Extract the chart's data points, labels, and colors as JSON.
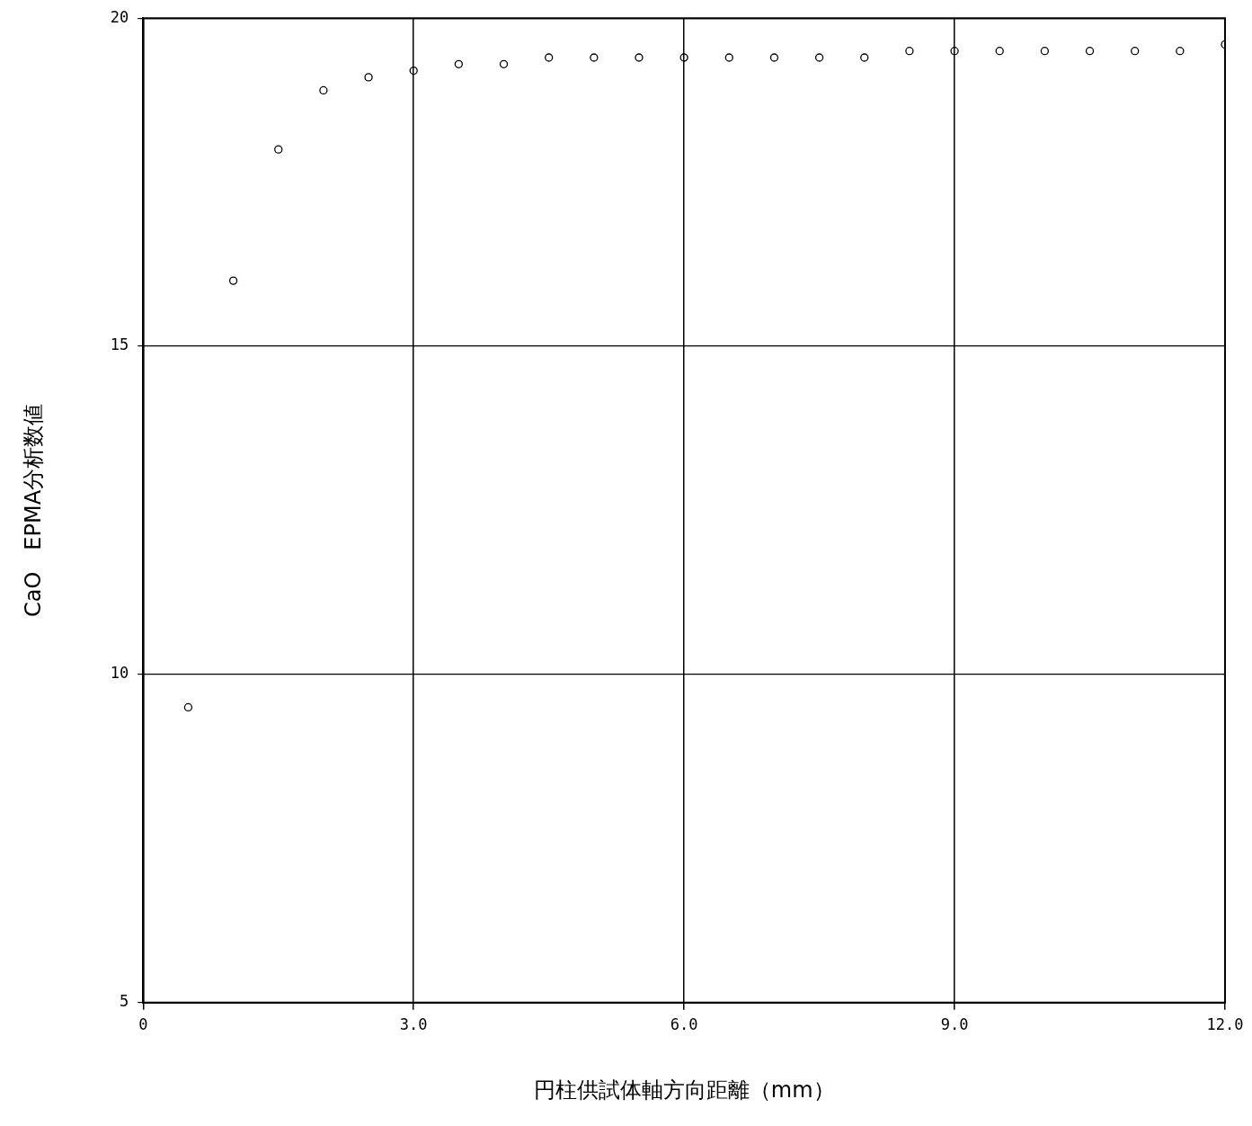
{
  "chart_data": {
    "type": "scatter",
    "xlabel": "円柱供試体軸方向距離（mm）",
    "ylabel": "CaO　EPMA分析数値",
    "x": [
      0.5,
      1.0,
      1.5,
      2.0,
      2.5,
      3.0,
      3.5,
      4.0,
      4.5,
      5.0,
      5.5,
      6.0,
      6.5,
      7.0,
      7.5,
      8.0,
      8.5,
      9.0,
      9.5,
      10.0,
      10.5,
      11.0,
      11.5,
      12.0
    ],
    "series": [
      {
        "color": "#000000",
        "values": [
          9.5,
          16.0,
          18.0,
          18.9,
          19.1,
          19.2,
          19.3,
          19.3,
          19.4,
          19.4,
          19.4,
          19.4,
          19.4,
          19.4,
          19.4,
          19.4,
          19.5,
          19.5,
          19.5,
          19.5,
          19.5,
          19.5,
          19.5,
          19.6
        ]
      }
    ],
    "xlim": [
      0,
      12
    ],
    "xticks": [
      0,
      {
        "value": 3,
        "label": "3.0"
      },
      {
        "value": 6,
        "label": "6.0"
      },
      {
        "value": 9,
        "label": "9.0"
      },
      {
        "value": 12,
        "label": "12.0"
      }
    ],
    "ylim": [
      5,
      20
    ],
    "yticks": [
      5,
      10,
      15,
      20
    ],
    "grid": true,
    "legend": false,
    "marker": "circle"
  }
}
